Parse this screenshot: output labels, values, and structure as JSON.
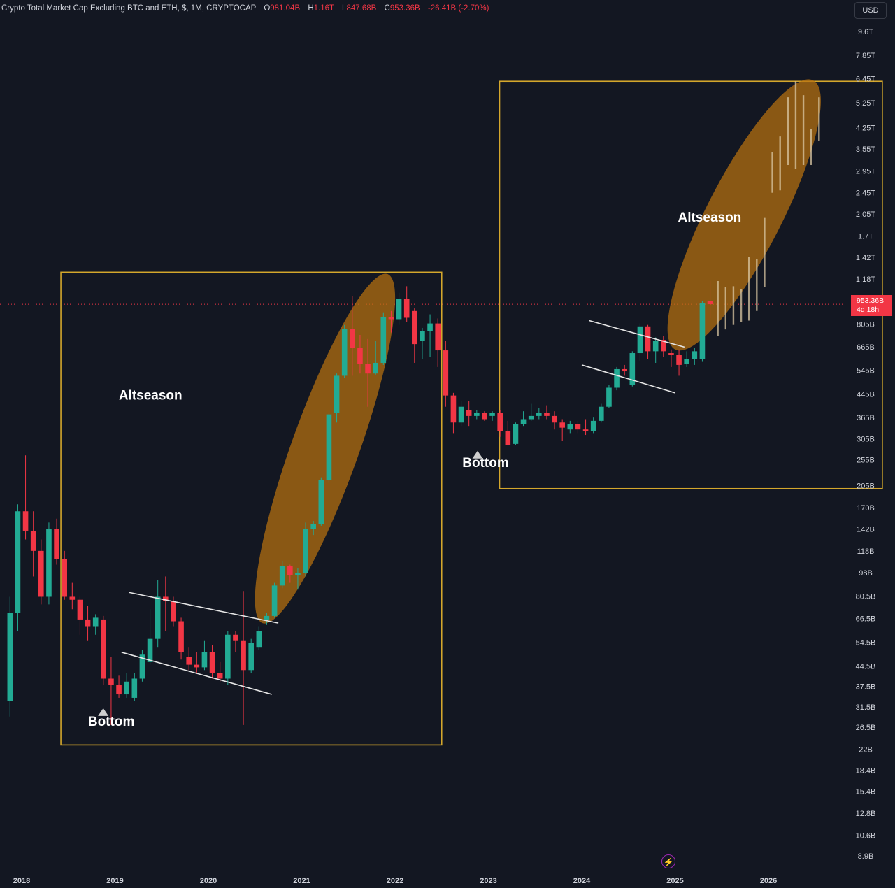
{
  "header": {
    "title": "Crypto Total Market Cap Excluding BTC and ETH, $, 1M, CRYPTOCAP",
    "open_label": "O",
    "open": "981.04B",
    "high_label": "H",
    "high": "1.16T",
    "low_label": "L",
    "low": "847.68B",
    "close_label": "C",
    "close": "953.36B",
    "change": "-26.41B (-2.70%)"
  },
  "currency": "USD",
  "price_badge": {
    "price": "953.36B",
    "countdown": "4d 18h"
  },
  "colors": {
    "up": "#22ab94",
    "down": "#f23645",
    "box": "#d4a72c",
    "ellipse": "#b8720f",
    "bg": "#131722"
  },
  "chart_data": {
    "type": "candlestick",
    "scale": "log",
    "ylim": [
      8.5,
      10500
    ],
    "y_unit": "B",
    "y_ticks": [
      {
        "v": 9600,
        "label": "9.6T"
      },
      {
        "v": 7850,
        "label": "7.85T"
      },
      {
        "v": 6450,
        "label": "6.45T"
      },
      {
        "v": 5250,
        "label": "5.25T"
      },
      {
        "v": 4250,
        "label": "4.25T"
      },
      {
        "v": 3550,
        "label": "3.55T"
      },
      {
        "v": 2950,
        "label": "2.95T"
      },
      {
        "v": 2450,
        "label": "2.45T"
      },
      {
        "v": 2050,
        "label": "2.05T"
      },
      {
        "v": 1700,
        "label": "1.7T"
      },
      {
        "v": 1420,
        "label": "1.42T"
      },
      {
        "v": 1180,
        "label": "1.18T"
      },
      {
        "v": 805,
        "label": "805B"
      },
      {
        "v": 665,
        "label": "665B"
      },
      {
        "v": 545,
        "label": "545B"
      },
      {
        "v": 445,
        "label": "445B"
      },
      {
        "v": 365,
        "label": "365B"
      },
      {
        "v": 305,
        "label": "305B"
      },
      {
        "v": 255,
        "label": "255B"
      },
      {
        "v": 205,
        "label": "205B"
      },
      {
        "v": 170,
        "label": "170B"
      },
      {
        "v": 142,
        "label": "142B"
      },
      {
        "v": 118,
        "label": "118B"
      },
      {
        "v": 98,
        "label": "98B"
      },
      {
        "v": 80.5,
        "label": "80.5B"
      },
      {
        "v": 66.5,
        "label": "66.5B"
      },
      {
        "v": 54.5,
        "label": "54.5B"
      },
      {
        "v": 44.5,
        "label": "44.5B"
      },
      {
        "v": 37.5,
        "label": "37.5B"
      },
      {
        "v": 31.5,
        "label": "31.5B"
      },
      {
        "v": 26.5,
        "label": "26.5B"
      },
      {
        "v": 22,
        "label": "22B"
      },
      {
        "v": 18.4,
        "label": "18.4B"
      },
      {
        "v": 15.4,
        "label": "15.4B"
      },
      {
        "v": 12.8,
        "label": "12.8B"
      },
      {
        "v": 10.6,
        "label": "10.6B"
      },
      {
        "v": 8.9,
        "label": "8.9B"
      }
    ],
    "x_ticks": [
      {
        "t": 2018,
        "label": "2018"
      },
      {
        "t": 2019,
        "label": "2019"
      },
      {
        "t": 2020,
        "label": "2020"
      },
      {
        "t": 2021,
        "label": "2021"
      },
      {
        "t": 2022,
        "label": "2022"
      },
      {
        "t": 2023,
        "label": "2023"
      },
      {
        "t": 2024,
        "label": "2024"
      },
      {
        "t": 2025,
        "label": "2025"
      },
      {
        "t": 2026,
        "label": "2026"
      }
    ],
    "current_price": 953.36,
    "candles": [
      {
        "t": "2017-11",
        "o": 33,
        "h": 80,
        "l": 29,
        "c": 70
      },
      {
        "t": "2017-12",
        "o": 70,
        "h": 175,
        "l": 60,
        "c": 165
      },
      {
        "t": "2018-01",
        "o": 165,
        "h": 265,
        "l": 130,
        "c": 140
      },
      {
        "t": "2018-02",
        "o": 140,
        "h": 165,
        "l": 95,
        "c": 118
      },
      {
        "t": "2018-03",
        "o": 118,
        "h": 130,
        "l": 75,
        "c": 80
      },
      {
        "t": "2018-04",
        "o": 80,
        "h": 150,
        "l": 75,
        "c": 142
      },
      {
        "t": "2018-05",
        "o": 142,
        "h": 155,
        "l": 105,
        "c": 110
      },
      {
        "t": "2018-06",
        "o": 110,
        "h": 118,
        "l": 78,
        "c": 80
      },
      {
        "t": "2018-07",
        "o": 80,
        "h": 90,
        "l": 72,
        "c": 78
      },
      {
        "t": "2018-08",
        "o": 78,
        "h": 80,
        "l": 58,
        "c": 66
      },
      {
        "t": "2018-09",
        "o": 66,
        "h": 74,
        "l": 55,
        "c": 62
      },
      {
        "t": "2018-10",
        "o": 62,
        "h": 69,
        "l": 58,
        "c": 67
      },
      {
        "t": "2018-11",
        "o": 66,
        "h": 68,
        "l": 38,
        "c": 40
      },
      {
        "t": "2018-12",
        "o": 40,
        "h": 48,
        "l": 27,
        "c": 38
      },
      {
        "t": "2019-01",
        "o": 38,
        "h": 41,
        "l": 34,
        "c": 35
      },
      {
        "t": "2019-02",
        "o": 35,
        "h": 42,
        "l": 34,
        "c": 39
      },
      {
        "t": "2019-03",
        "o": 34,
        "h": 42,
        "l": 33,
        "c": 40
      },
      {
        "t": "2019-04",
        "o": 40,
        "h": 51,
        "l": 39,
        "c": 49
      },
      {
        "t": "2019-05",
        "o": 46,
        "h": 72,
        "l": 45,
        "c": 56
      },
      {
        "t": "2019-06",
        "o": 56,
        "h": 92,
        "l": 52,
        "c": 80
      },
      {
        "t": "2019-07",
        "o": 80,
        "h": 95,
        "l": 60,
        "c": 77
      },
      {
        "t": "2019-08",
        "o": 77,
        "h": 80,
        "l": 62,
        "c": 65
      },
      {
        "t": "2019-09",
        "o": 65,
        "h": 67,
        "l": 47,
        "c": 50
      },
      {
        "t": "2019-10",
        "o": 48,
        "h": 52,
        "l": 43,
        "c": 45
      },
      {
        "t": "2019-11",
        "o": 45,
        "h": 50,
        "l": 42,
        "c": 44
      },
      {
        "t": "2019-12",
        "o": 44,
        "h": 55,
        "l": 43,
        "c": 50
      },
      {
        "t": "2020-01",
        "o": 50,
        "h": 53,
        "l": 40,
        "c": 42
      },
      {
        "t": "2020-02",
        "o": 42,
        "h": 46,
        "l": 39,
        "c": 40
      },
      {
        "t": "2020-03",
        "o": 40,
        "h": 60,
        "l": 38,
        "c": 58
      },
      {
        "t": "2020-04",
        "o": 58,
        "h": 60,
        "l": 50,
        "c": 55
      },
      {
        "t": "2020-05",
        "o": 55,
        "h": 84,
        "l": 27,
        "c": 43
      },
      {
        "t": "2020-06",
        "o": 43,
        "h": 56,
        "l": 42,
        "c": 54
      },
      {
        "t": "2020-07",
        "o": 52,
        "h": 62,
        "l": 51,
        "c": 60
      },
      {
        "t": "2020-08",
        "o": 66,
        "h": 70,
        "l": 63,
        "c": 68
      },
      {
        "t": "2020-09",
        "o": 68,
        "h": 90,
        "l": 67,
        "c": 88
      },
      {
        "t": "2020-10",
        "o": 88,
        "h": 108,
        "l": 86,
        "c": 104
      },
      {
        "t": "2020-11",
        "o": 104,
        "h": 105,
        "l": 90,
        "c": 96
      },
      {
        "t": "2020-12",
        "o": 96,
        "h": 102,
        "l": 85,
        "c": 98
      },
      {
        "t": "2021-01",
        "o": 98,
        "h": 150,
        "l": 95,
        "c": 142
      },
      {
        "t": "2021-02",
        "o": 142,
        "h": 152,
        "l": 135,
        "c": 148
      },
      {
        "t": "2021-03",
        "o": 148,
        "h": 220,
        "l": 146,
        "c": 215
      },
      {
        "t": "2021-04",
        "o": 215,
        "h": 380,
        "l": 210,
        "c": 375
      },
      {
        "t": "2021-05",
        "o": 380,
        "h": 530,
        "l": 350,
        "c": 520
      },
      {
        "t": "2021-06",
        "o": 520,
        "h": 800,
        "l": 510,
        "c": 775
      },
      {
        "t": "2021-07",
        "o": 775,
        "h": 1020,
        "l": 520,
        "c": 660
      },
      {
        "t": "2021-08",
        "o": 660,
        "h": 735,
        "l": 530,
        "c": 575
      },
      {
        "t": "2021-09",
        "o": 575,
        "h": 710,
        "l": 400,
        "c": 530
      },
      {
        "t": "2021-10",
        "o": 530,
        "h": 700,
        "l": 525,
        "c": 580
      },
      {
        "t": "2021-11",
        "o": 580,
        "h": 890,
        "l": 570,
        "c": 855
      },
      {
        "t": "2021-12",
        "o": 855,
        "h": 900,
        "l": 750,
        "c": 840
      },
      {
        "t": "2022-01",
        "o": 840,
        "h": 1050,
        "l": 800,
        "c": 995
      },
      {
        "t": "2022-02",
        "o": 995,
        "h": 1110,
        "l": 820,
        "c": 850
      },
      {
        "t": "2022-03",
        "o": 900,
        "h": 920,
        "l": 580,
        "c": 680
      },
      {
        "t": "2022-04",
        "o": 700,
        "h": 780,
        "l": 600,
        "c": 760
      },
      {
        "t": "2022-05",
        "o": 760,
        "h": 875,
        "l": 610,
        "c": 810
      },
      {
        "t": "2022-06",
        "o": 810,
        "h": 845,
        "l": 560,
        "c": 645
      },
      {
        "t": "2022-07",
        "o": 645,
        "h": 700,
        "l": 400,
        "c": 440
      },
      {
        "t": "2022-08",
        "o": 440,
        "h": 450,
        "l": 320,
        "c": 350
      },
      {
        "t": "2022-09",
        "o": 350,
        "h": 420,
        "l": 340,
        "c": 400
      },
      {
        "t": "2022-10",
        "o": 390,
        "h": 420,
        "l": 340,
        "c": 370
      },
      {
        "t": "2022-11",
        "o": 370,
        "h": 390,
        "l": 360,
        "c": 380
      },
      {
        "t": "2022-12",
        "o": 380,
        "h": 385,
        "l": 355,
        "c": 360
      },
      {
        "t": "2023-01",
        "o": 370,
        "h": 385,
        "l": 355,
        "c": 380
      },
      {
        "t": "2023-02",
        "o": 380,
        "h": 390,
        "l": 310,
        "c": 325
      },
      {
        "t": "2023-03",
        "o": 325,
        "h": 355,
        "l": 290,
        "c": 290
      },
      {
        "t": "2023-04",
        "o": 292,
        "h": 350,
        "l": 290,
        "c": 345
      },
      {
        "t": "2023-05",
        "o": 345,
        "h": 385,
        "l": 340,
        "c": 360
      },
      {
        "t": "2023-06",
        "o": 360,
        "h": 410,
        "l": 355,
        "c": 370
      },
      {
        "t": "2023-07",
        "o": 370,
        "h": 395,
        "l": 360,
        "c": 380
      },
      {
        "t": "2023-08",
        "o": 380,
        "h": 405,
        "l": 360,
        "c": 370
      },
      {
        "t": "2023-09",
        "o": 370,
        "h": 385,
        "l": 330,
        "c": 350
      },
      {
        "t": "2023-10",
        "o": 350,
        "h": 360,
        "l": 300,
        "c": 335
      },
      {
        "t": "2023-11",
        "o": 330,
        "h": 355,
        "l": 320,
        "c": 345
      },
      {
        "t": "2023-12",
        "o": 345,
        "h": 355,
        "l": 320,
        "c": 330
      },
      {
        "t": "2024-01",
        "o": 330,
        "h": 360,
        "l": 315,
        "c": 325
      },
      {
        "t": "2024-02",
        "o": 325,
        "h": 365,
        "l": 320,
        "c": 355
      },
      {
        "t": "2024-03",
        "o": 355,
        "h": 410,
        "l": 350,
        "c": 400
      },
      {
        "t": "2024-04",
        "o": 400,
        "h": 480,
        "l": 395,
        "c": 470
      },
      {
        "t": "2024-05",
        "o": 470,
        "h": 560,
        "l": 460,
        "c": 550
      },
      {
        "t": "2024-06",
        "o": 550,
        "h": 570,
        "l": 520,
        "c": 540
      },
      {
        "t": "2024-07",
        "o": 480,
        "h": 640,
        "l": 475,
        "c": 630
      },
      {
        "t": "2024-08",
        "o": 630,
        "h": 810,
        "l": 590,
        "c": 790
      },
      {
        "t": "2024-09",
        "o": 790,
        "h": 800,
        "l": 600,
        "c": 640
      },
      {
        "t": "2024-10",
        "o": 640,
        "h": 720,
        "l": 580,
        "c": 700
      },
      {
        "t": "2024-11",
        "o": 705,
        "h": 730,
        "l": 610,
        "c": 640
      },
      {
        "t": "2024-12",
        "o": 630,
        "h": 650,
        "l": 560,
        "c": 620
      },
      {
        "t": "2025-01",
        "o": 620,
        "h": 650,
        "l": 520,
        "c": 570
      },
      {
        "t": "2025-02",
        "o": 575,
        "h": 640,
        "l": 560,
        "c": 600
      },
      {
        "t": "2025-03",
        "o": 600,
        "h": 660,
        "l": 570,
        "c": 640
      },
      {
        "t": "2025-04",
        "o": 600,
        "h": 980,
        "l": 585,
        "c": 965
      },
      {
        "t": "2025-05",
        "o": 981,
        "h": 1160,
        "l": 847.68,
        "c": 953.36
      }
    ],
    "projection": [
      {
        "t": "2025-06",
        "h": 1160,
        "l": 730
      },
      {
        "t": "2025-07",
        "h": 1100,
        "l": 770
      },
      {
        "t": "2025-08",
        "h": 1110,
        "l": 800
      },
      {
        "t": "2025-09",
        "h": 1080,
        "l": 820
      },
      {
        "t": "2025-10",
        "h": 1420,
        "l": 830
      },
      {
        "t": "2025-11",
        "h": 1400,
        "l": 900
      },
      {
        "t": "2025-12",
        "h": 1980,
        "l": 1100
      },
      {
        "t": "2026-01",
        "h": 3450,
        "l": 2450
      },
      {
        "t": "2026-02",
        "h": 3950,
        "l": 2500
      },
      {
        "t": "2026-03",
        "h": 5500,
        "l": 3100
      },
      {
        "t": "2026-04",
        "h": 6300,
        "l": 3000
      },
      {
        "t": "2026-05",
        "h": 5600,
        "l": 3100
      },
      {
        "t": "2026-06",
        "h": 4200,
        "l": 3100
      },
      {
        "t": "2026-07",
        "h": 5500,
        "l": 3800
      }
    ],
    "boxes": [
      {
        "t0": 2018.42,
        "t1": 2022.5,
        "top": 1250,
        "bottom": 22.8
      },
      {
        "t0": 2023.12,
        "t1": 2027.22,
        "top": 6300,
        "bottom": 200
      }
    ],
    "ellipses": [
      {
        "label": "Altseason",
        "t_start": 2020.58,
        "v_start": 64,
        "t_end": 2021.92,
        "v_end": 1230,
        "minor_t": 0.72
      },
      {
        "label": "Altseason",
        "t_start": 2025.0,
        "v_start": 650,
        "t_end": 2026.48,
        "v_end": 6350,
        "minor_t": 0.8
      }
    ],
    "channels": [
      {
        "a": [
          2019.15,
          83
        ],
        "b": [
          2020.75,
          64
        ]
      },
      {
        "a": [
          2019.07,
          50
        ],
        "b": [
          2020.68,
          35
        ]
      },
      {
        "a": [
          2024.08,
          830
        ],
        "b": [
          2025.1,
          663
        ]
      },
      {
        "a": [
          2024.0,
          570
        ],
        "b": [
          2025.0,
          450
        ]
      }
    ],
    "annotations": [
      {
        "text": "Altseason",
        "t": 2019.38,
        "v": 425
      },
      {
        "text": "Altseason",
        "t": 2025.37,
        "v": 1920
      },
      {
        "text": "Bottom",
        "t": 2018.96,
        "v": 26.8,
        "marker_v": 29.5
      },
      {
        "text": "Bottom",
        "t": 2022.97,
        "v": 240,
        "marker_v": 261
      }
    ]
  }
}
